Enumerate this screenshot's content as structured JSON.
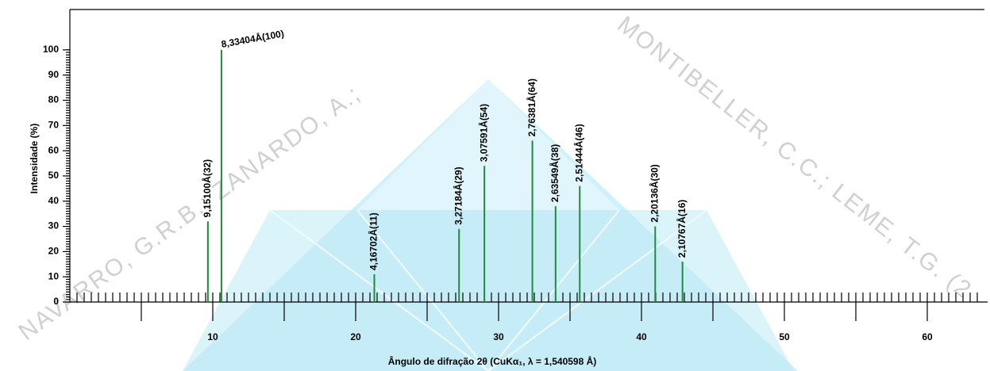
{
  "chart_data": {
    "type": "stem",
    "x_label": "Ângulo de difração 2θ (CuKα₁, λ = 1,540598 Å)",
    "y_label": "Intensidade (%)",
    "watermarks": [
      "NAVARRO, G.R.B.; ZANARDO, A.;",
      "MONTIBELLER, C.C.; LEME, T.G. (2"
    ],
    "x": [
      9.658,
      10.607,
      21.306,
      27.234,
      29.008,
      32.366,
      33.99,
      35.68,
      40.96,
      42.87
    ],
    "values": [
      32,
      100,
      11,
      29,
      54,
      64,
      38,
      46,
      30,
      16
    ],
    "value_labels": [
      "9,15100Å(32)",
      "8,33404Å(100)",
      "4,16702Å(11)",
      "3,27184Å(29)",
      "3,07591Å(54)",
      "2,76381Å(64)",
      "2,63549Å(38)",
      "2,51444Å(46)",
      "2,20136Å(30)",
      "2,10767Å(16)"
    ],
    "color": "#1e8c3c",
    "xlim": [
      0,
      64
    ],
    "xticks": [
      10,
      20,
      30,
      40,
      50,
      60
    ],
    "ylim": [
      0,
      116
    ],
    "yticks": [
      0,
      10,
      20,
      30,
      40,
      50,
      60,
      70,
      80,
      90,
      100
    ]
  }
}
